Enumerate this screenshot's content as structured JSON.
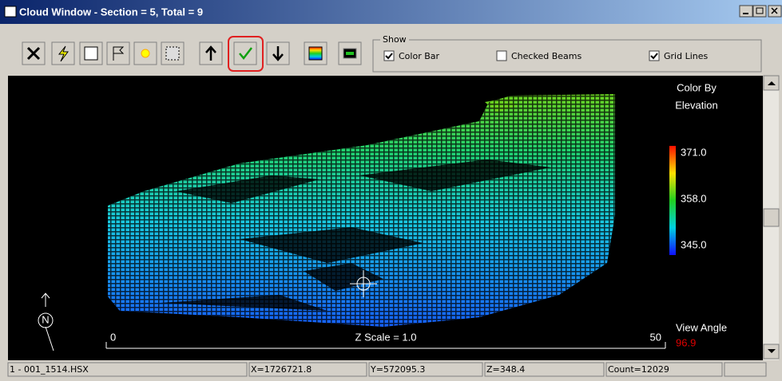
{
  "window": {
    "title": "Cloud Window - Section = 5, Total = 9"
  },
  "show_group": {
    "label": "Show",
    "options": [
      {
        "label": "Color Bar",
        "checked": true
      },
      {
        "label": "Checked Beams",
        "checked": false
      },
      {
        "label": "Grid Lines",
        "checked": true
      }
    ]
  },
  "color_bar": {
    "title_line1": "Color By",
    "title_line2": "Elevation",
    "labels": [
      "371.0",
      "358.0",
      "345.0"
    ]
  },
  "scale": {
    "start": "0",
    "label": "Z Scale = 1.0",
    "end": "50"
  },
  "view_angle": {
    "label": "View Angle",
    "value": "96.9"
  },
  "compass": {
    "label": "N"
  },
  "status_bar": {
    "fields": [
      "1 - 001_1514.HSX",
      "X=1726721.8",
      "Y=572095.3",
      "Z=348.4",
      "Count=12029"
    ]
  }
}
